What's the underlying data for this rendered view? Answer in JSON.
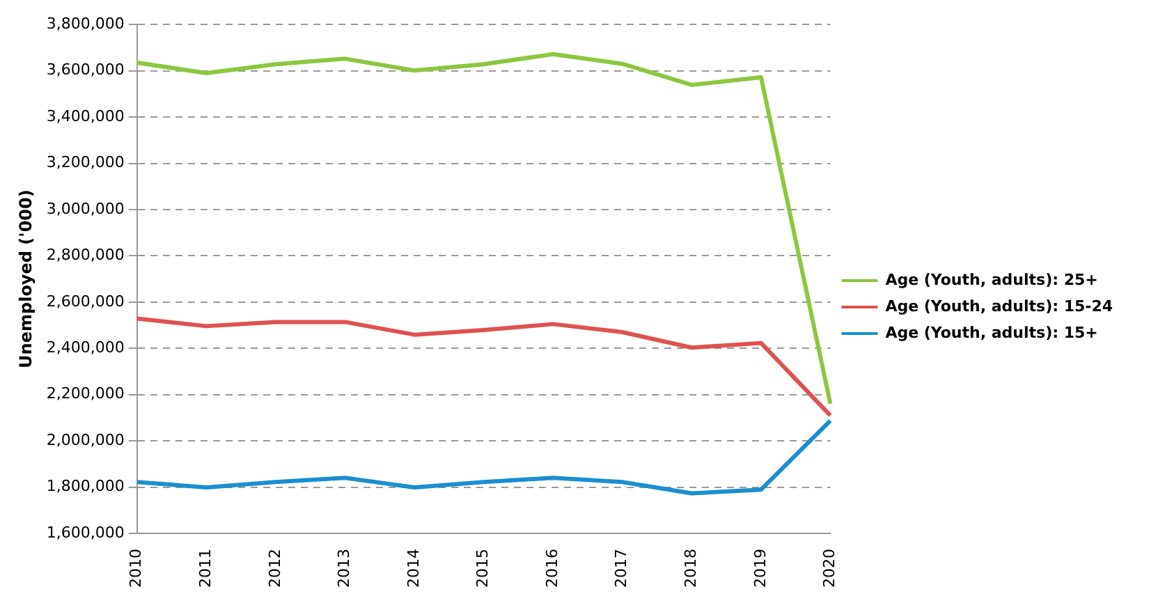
{
  "chart_data": {
    "type": "line",
    "ylabel": "Unemployed ('000)",
    "categories": [
      "2010",
      "2011",
      "2012",
      "2013",
      "2014",
      "2015",
      "2016",
      "2017",
      "2018",
      "2019",
      "2020"
    ],
    "series": [
      {
        "name": "Age (Youth, adults): 25+",
        "color": "#8dc63f",
        "values": [
          3635000,
          3590000,
          3628000,
          3652000,
          3601000,
          3628000,
          3672000,
          3630000,
          3539000,
          3572000,
          2160000
        ]
      },
      {
        "name": "Age (Youth, adults): 15-24",
        "color": "#e05252",
        "values": [
          2529000,
          2496000,
          2514000,
          2514000,
          2459000,
          2479000,
          2505000,
          2470000,
          2403000,
          2423000,
          2110000
        ]
      },
      {
        "name": "Age (Youth, adults): 15+",
        "color": "#1a8fd0",
        "values": [
          1822000,
          1799000,
          1822000,
          1840000,
          1799000,
          1822000,
          1840000,
          1822000,
          1773000,
          1789000,
          2087000
        ]
      }
    ],
    "ylim": [
      1600000,
      3800000
    ],
    "yticks": [
      {
        "value": 1600000,
        "label": "1,600,000"
      },
      {
        "value": 1800000,
        "label": "1,800,000"
      },
      {
        "value": 2000000,
        "label": "2,000,000"
      },
      {
        "value": 2200000,
        "label": "2,200,000"
      },
      {
        "value": 2400000,
        "label": "2,400,000"
      },
      {
        "value": 2600000,
        "label": "2,600,000"
      },
      {
        "value": 2800000,
        "label": "2,800,000"
      },
      {
        "value": 3000000,
        "label": "3,000,000"
      },
      {
        "value": 3200000,
        "label": "3,200,000"
      },
      {
        "value": 3400000,
        "label": "3,400,000"
      },
      {
        "value": 3600000,
        "label": "3,600,000"
      },
      {
        "value": 3800000,
        "label": "3,800,000"
      }
    ],
    "grid": "y",
    "legend": "right",
    "marker": "none",
    "line_style": "solid"
  }
}
